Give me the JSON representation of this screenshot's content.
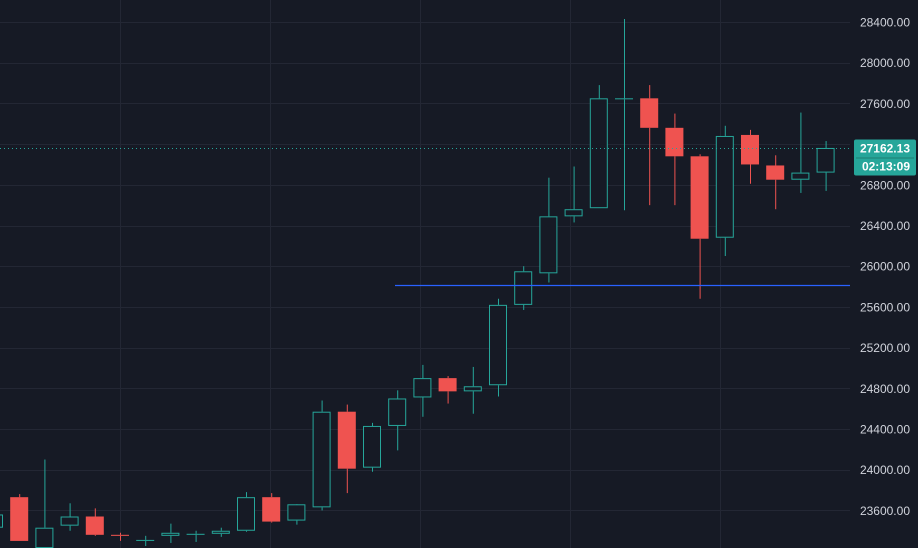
{
  "chart_data": {
    "type": "candlestick",
    "title": "",
    "xlabel": "",
    "ylabel": "",
    "ylim": [
      23400,
      28600
    ],
    "y_ticks": [
      "28400.00",
      "28000.00",
      "27600.00",
      "27200.00",
      "26800.00",
      "26400.00",
      "26000.00",
      "25600.00",
      "25200.00",
      "24800.00",
      "24400.00",
      "24000.00",
      "23600.00"
    ],
    "y_tick_values": [
      28400,
      28000,
      27600,
      27200,
      26800,
      26400,
      26000,
      25600,
      25200,
      24800,
      24400,
      24000,
      23600
    ],
    "grid": true,
    "colors": {
      "background": "#161a25",
      "grid": "#232734",
      "up": "#26a69a",
      "down": "#ef5350",
      "hline": "#2962ff",
      "price_line": "#26a69a",
      "axis_text": "#d1d4dc"
    },
    "current_price": 27162.13,
    "current_price_label": "27162.13",
    "countdown_label": "02:13:09",
    "horizontal_line_price": 25820,
    "candles": [
      {
        "o": 23430,
        "h": 23590,
        "l": 23340,
        "c": 23560
      },
      {
        "o": 23730,
        "h": 23760,
        "l": 23300,
        "c": 23300
      },
      {
        "o": 23230,
        "h": 24100,
        "l": 23220,
        "c": 23430
      },
      {
        "o": 23450,
        "h": 23670,
        "l": 23400,
        "c": 23540
      },
      {
        "o": 23540,
        "h": 23620,
        "l": 23350,
        "c": 23360
      },
      {
        "o": 23360,
        "h": 23380,
        "l": 23300,
        "c": 23350
      },
      {
        "o": 23300,
        "h": 23350,
        "l": 23250,
        "c": 23310
      },
      {
        "o": 23350,
        "h": 23470,
        "l": 23280,
        "c": 23380
      },
      {
        "o": 23360,
        "h": 23400,
        "l": 23290,
        "c": 23370
      },
      {
        "o": 23370,
        "h": 23430,
        "l": 23340,
        "c": 23400
      },
      {
        "o": 23400,
        "h": 23780,
        "l": 23390,
        "c": 23730
      },
      {
        "o": 23730,
        "h": 23770,
        "l": 23480,
        "c": 23490
      },
      {
        "o": 23500,
        "h": 23650,
        "l": 23460,
        "c": 23660
      },
      {
        "o": 23630,
        "h": 24680,
        "l": 23600,
        "c": 24570
      },
      {
        "o": 24570,
        "h": 24640,
        "l": 23770,
        "c": 24010
      },
      {
        "o": 24020,
        "h": 24460,
        "l": 23980,
        "c": 24430
      },
      {
        "o": 24430,
        "h": 24780,
        "l": 24190,
        "c": 24700
      },
      {
        "o": 24710,
        "h": 25030,
        "l": 24520,
        "c": 24900
      },
      {
        "o": 24900,
        "h": 24920,
        "l": 24650,
        "c": 24770
      },
      {
        "o": 24770,
        "h": 25010,
        "l": 24550,
        "c": 24820
      },
      {
        "o": 24830,
        "h": 25680,
        "l": 24720,
        "c": 25620
      },
      {
        "o": 25620,
        "h": 26000,
        "l": 25570,
        "c": 25950
      },
      {
        "o": 25930,
        "h": 26870,
        "l": 25840,
        "c": 26490
      },
      {
        "o": 26490,
        "h": 26980,
        "l": 26430,
        "c": 26560
      },
      {
        "o": 26570,
        "h": 27780,
        "l": 26570,
        "c": 27650
      },
      {
        "o": 27640,
        "h": 28430,
        "l": 26550,
        "c": 27650
      },
      {
        "o": 27650,
        "h": 27780,
        "l": 26600,
        "c": 27360
      },
      {
        "o": 27360,
        "h": 27500,
        "l": 26600,
        "c": 27080
      },
      {
        "o": 27080,
        "h": 27100,
        "l": 25680,
        "c": 26270
      },
      {
        "o": 26280,
        "h": 27380,
        "l": 26100,
        "c": 27280
      },
      {
        "o": 27290,
        "h": 27340,
        "l": 26810,
        "c": 27000
      },
      {
        "o": 26990,
        "h": 27090,
        "l": 26560,
        "c": 26850
      },
      {
        "o": 26850,
        "h": 27510,
        "l": 26720,
        "c": 26920
      },
      {
        "o": 26920,
        "h": 27230,
        "l": 26740,
        "c": 27162.13
      }
    ]
  }
}
